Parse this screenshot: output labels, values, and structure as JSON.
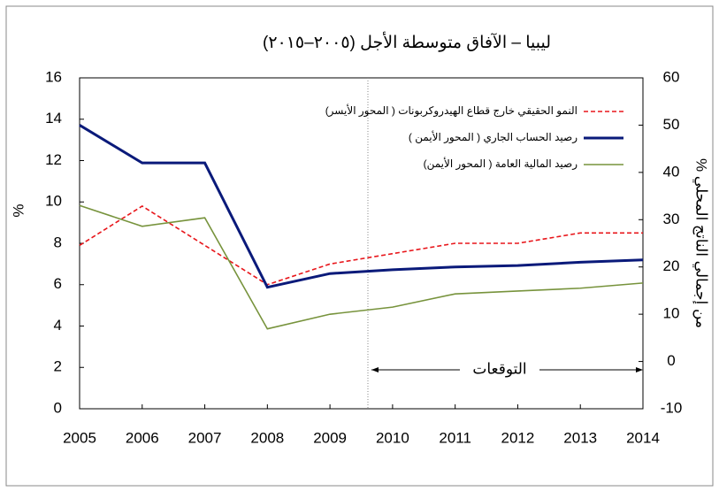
{
  "chart_data": {
    "type": "line",
    "title": "ليبيا – الآفاق متوسطة الأجل (٢٠٠٥–٢٠١٥)",
    "ylabel": "%",
    "y2label": "% من إجمالي الناتج المحلي",
    "annotation": "التوقعات",
    "x": [
      2005,
      2006,
      2007,
      2008,
      2009,
      2010,
      2011,
      2012,
      2013,
      2014
    ],
    "xlim": [
      2005,
      2014
    ],
    "xticks": [
      2005,
      2006,
      2007,
      2008,
      2009,
      2010,
      2011,
      2012,
      2013,
      2014
    ],
    "ylim": [
      0,
      16
    ],
    "yticks": [
      0,
      2,
      4,
      6,
      8,
      10,
      12,
      14,
      16
    ],
    "y2lim": [
      -10,
      60
    ],
    "y2ticks": [
      -10,
      0,
      10,
      20,
      30,
      40,
      50,
      60
    ],
    "series": [
      {
        "name": "النمو الحقيقي خارج قطاع الهيدروكربونات ( المحور الأيسر)",
        "color": "#e8161b",
        "linestyle": "dashed",
        "axis": "y",
        "values": [
          7.9,
          9.8,
          7.9,
          6.0,
          7.0,
          7.5,
          8.0,
          8.0,
          8.5,
          8.5
        ]
      },
      {
        "name": "رصيد الحساب الجاري ( المحور الأيمن )",
        "color": "#0a1a7a",
        "linestyle": "solid",
        "axis": "y2",
        "values": [
          50,
          42,
          42,
          15.7,
          18.6,
          19.4,
          20,
          20.3,
          21,
          21.5
        ]
      },
      {
        "name": "رصيد المالية العامة ( المحور الأيمن)",
        "color": "#77933c",
        "linestyle": "solid",
        "axis": "y2",
        "values": [
          33,
          28.6,
          30.4,
          6.9,
          10,
          11.5,
          14.3,
          14.9,
          15.5,
          16.6
        ]
      }
    ]
  }
}
